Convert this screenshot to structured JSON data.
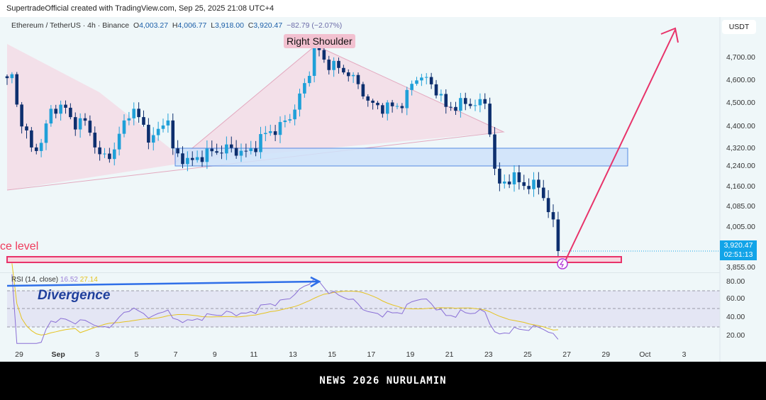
{
  "header": {
    "attribution": "SupertradeOfficial created with TradingView.com, Sep 25, 2025 21:08 UTC+4"
  },
  "legend": {
    "symbol": "Ethereum / TetherUS · 4h · Binance",
    "o_label": "O",
    "open": "4,003.27",
    "h_label": "H",
    "high": "4,006.77",
    "l_label": "L",
    "low": "3,918.00",
    "c_label": "C",
    "close": "3,920.47",
    "change": "−82.79 (−2.07%)"
  },
  "annotations": {
    "right_shoulder": "Right Shoulder",
    "resistance": "ce level",
    "divergence": "Divergence"
  },
  "price_axis": {
    "currency": "USDT",
    "labels": [
      "4,700.00",
      "4,600.00",
      "4,500.00",
      "4,400.00",
      "4,320.00",
      "4,240.00",
      "4,160.00",
      "4,085.00",
      "4,005.00",
      "3,855.00"
    ],
    "last_price": "3,920.47",
    "countdown": "02:51:13"
  },
  "rsi": {
    "label": "RSI (14, close)",
    "value": "16.52",
    "ma_value": "27.14",
    "axis": [
      "80.00",
      "60.00",
      "40.00",
      "20.00"
    ]
  },
  "time_axis": [
    "29",
    "Sep",
    "3",
    "5",
    "7",
    "9",
    "11",
    "13",
    "15",
    "17",
    "19",
    "21",
    "23",
    "25",
    "27",
    "29",
    "Oct",
    "3"
  ],
  "banner": "NEWS 2026 NURULAMIN",
  "colors": {
    "up": "#1fa0d8",
    "down": "#0d2f6e",
    "pink": "#e8336a",
    "blue": "#2f6fe8"
  },
  "chart_data": {
    "type": "candlestick",
    "interval": "4h",
    "x_unit": "days since Aug 29",
    "close_anchors": [
      [
        -0.6,
        4600
      ],
      [
        -0.4,
        4640
      ],
      [
        -0.1,
        4480
      ],
      [
        0.7,
        4300
      ],
      [
        1.2,
        4360
      ],
      [
        1.7,
        4480
      ],
      [
        2.3,
        4490
      ],
      [
        2.7,
        4420
      ],
      [
        3.4,
        4420
      ],
      [
        3.9,
        4340
      ],
      [
        4.1,
        4280
      ],
      [
        4.8,
        4300
      ],
      [
        5.7,
        4480
      ],
      [
        6.3,
        4420
      ],
      [
        6.8,
        4340
      ],
      [
        7.6,
        4450
      ],
      [
        7.9,
        4300
      ],
      [
        8.8,
        4260
      ],
      [
        9.6,
        4300
      ],
      [
        10.7,
        4320
      ],
      [
        11.7,
        4300
      ],
      [
        12.7,
        4380
      ],
      [
        13.4,
        4400
      ],
      [
        14.1,
        4470
      ],
      [
        14.8,
        4620
      ],
      [
        15.2,
        4760
      ],
      [
        15.7,
        4680
      ],
      [
        16.8,
        4640
      ],
      [
        17.6,
        4560
      ],
      [
        17.9,
        4500
      ],
      [
        18.8,
        4480
      ],
      [
        19.7,
        4500
      ],
      [
        20.3,
        4620
      ],
      [
        20.8,
        4610
      ],
      [
        21.4,
        4560
      ],
      [
        21.9,
        4480
      ],
      [
        22.7,
        4500
      ],
      [
        23.9,
        4500
      ],
      [
        24.1,
        4420
      ],
      [
        24.3,
        4260
      ],
      [
        24.5,
        4160
      ],
      [
        25.2,
        4200
      ],
      [
        25.9,
        4170
      ],
      [
        26.8,
        4160
      ],
      [
        27.2,
        4040
      ],
      [
        27.6,
        4005
      ],
      [
        27.85,
        3920.47
      ]
    ]
  }
}
